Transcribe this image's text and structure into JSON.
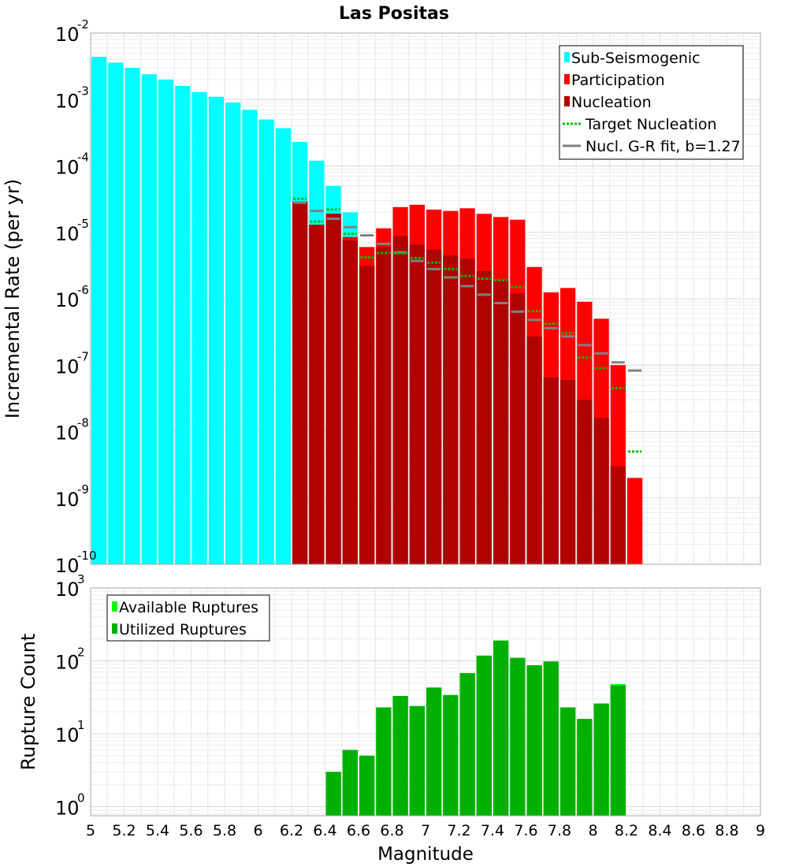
{
  "chart_data": [
    {
      "type": "bar",
      "title": "Las Positas",
      "xlabel": "",
      "ylabel": "Incremental Rate (per yr)",
      "yscale": "log",
      "ylim": [
        1e-10,
        0.01
      ],
      "xlim": [
        5,
        9
      ],
      "grid": true,
      "legend_position": "top-right",
      "y_tick_labels": [
        {
          "base": "10",
          "exp": "-2"
        },
        {
          "base": "10",
          "exp": "-3"
        },
        {
          "base": "10",
          "exp": "-4"
        },
        {
          "base": "10",
          "exp": "-5"
        },
        {
          "base": "10",
          "exp": "-6"
        },
        {
          "base": "10",
          "exp": "-7"
        },
        {
          "base": "10",
          "exp": "-8"
        },
        {
          "base": "10",
          "exp": "-9"
        },
        {
          "base": "10",
          "exp": "-10"
        }
      ],
      "legend": [
        {
          "label": "Sub-Seismogenic",
          "color": "#00ffff",
          "kind": "box"
        },
        {
          "label": "Participation",
          "color": "#ff0000",
          "kind": "box"
        },
        {
          "label": "Nucleation",
          "color": "#b00000",
          "kind": "box"
        },
        {
          "label": "Target Nucleation",
          "color": "#00bb00",
          "kind": "dotted"
        },
        {
          "label": "Nucl. G-R fit, b=1.27",
          "color": "#808080",
          "kind": "line"
        }
      ],
      "series": [
        {
          "name": "Sub-Seismogenic",
          "color": "#00ffff",
          "x": [
            5.05,
            5.15,
            5.25,
            5.35,
            5.45,
            5.55,
            5.65,
            5.75,
            5.85,
            5.95,
            6.05,
            6.15,
            6.25,
            6.35,
            6.45,
            6.55
          ],
          "values": [
            0.0044,
            0.0036,
            0.003,
            0.0024,
            0.002,
            0.0016,
            0.0013,
            0.0011,
            0.0009,
            0.0007,
            0.0005,
            0.00037,
            0.00023,
            0.00012,
            5e-05,
            2e-05
          ]
        },
        {
          "name": "Participation",
          "color": "#ff0000",
          "x": [
            6.25,
            6.35,
            6.45,
            6.55,
            6.65,
            6.75,
            6.85,
            6.95,
            7.05,
            7.15,
            7.25,
            7.35,
            7.45,
            7.55,
            7.65,
            7.75,
            7.85,
            7.95,
            8.05,
            8.15,
            8.25
          ],
          "values": [
            2.9e-05,
            1.3e-05,
            1.9e-05,
            8.5e-06,
            6e-06,
            1.15e-05,
            2.4e-05,
            2.6e-05,
            2.2e-05,
            2.1e-05,
            2.3e-05,
            1.9e-05,
            1.7e-05,
            1.55e-05,
            3e-06,
            1.25e-06,
            1.45e-06,
            9e-07,
            5e-07,
            1e-07,
            2e-09
          ]
        },
        {
          "name": "Nucleation",
          "color": "#b00000",
          "x": [
            6.25,
            6.35,
            6.45,
            6.55,
            6.65,
            6.75,
            6.85,
            6.95,
            7.05,
            7.15,
            7.25,
            7.35,
            7.45,
            7.55,
            7.65,
            7.75,
            7.85,
            7.95,
            8.05,
            8.15
          ],
          "values": [
            2.9e-05,
            1.3e-05,
            1.9e-05,
            7.5e-06,
            3.1e-06,
            6e-06,
            8.8e-06,
            6.5e-06,
            5.5e-06,
            4.5e-06,
            4e-06,
            2.6e-06,
            1.9e-06,
            1.2e-06,
            2.7e-07,
            6.5e-08,
            6e-08,
            3e-08,
            1.6e-08,
            3e-09
          ]
        },
        {
          "name": "Target Nucleation",
          "color": "#00bb00",
          "x": [
            6.25,
            6.35,
            6.45,
            6.55,
            6.65,
            6.75,
            6.85,
            6.95,
            7.05,
            7.15,
            7.25,
            7.35,
            7.45,
            7.55,
            7.65,
            7.75,
            7.85,
            7.95,
            8.05,
            8.15,
            8.25
          ],
          "values": [
            3.2e-05,
            1.45e-05,
            2.2e-05,
            9.5e-06,
            4.2e-06,
            4.9e-06,
            4.8e-06,
            4.1e-06,
            3.5e-06,
            2.8e-06,
            2.2e-06,
            2e-06,
            1.9e-06,
            1.5e-06,
            6.5e-07,
            4.2e-07,
            3e-07,
            1.3e-07,
            9e-08,
            4.5e-08,
            5e-09
          ]
        },
        {
          "name": "Nucl. G-R fit, b=1.27",
          "color": "#808080",
          "x": [
            6.25,
            6.35,
            6.45,
            6.55,
            6.65,
            6.75,
            6.85,
            6.95,
            7.05,
            7.15,
            7.25,
            7.35,
            7.45,
            7.55,
            7.65,
            7.75,
            7.85,
            7.95,
            8.05,
            8.15,
            8.25
          ],
          "values": [
            2.8e-05,
            2.1e-05,
            1.6e-05,
            1.2e-05,
            9e-06,
            6.7e-06,
            5e-06,
            3.7e-06,
            2.8e-06,
            2.1e-06,
            1.55e-06,
            1.15e-06,
            8.6e-07,
            6.4e-07,
            4.8e-07,
            3.6e-07,
            2.7e-07,
            2e-07,
            1.5e-07,
            1.1e-07,
            8.3e-08
          ]
        }
      ]
    },
    {
      "type": "bar",
      "title": "",
      "xlabel": "Magnitude",
      "ylabel": "Rupture Count",
      "yscale": "log",
      "ylim": [
        0.75,
        1000
      ],
      "xlim": [
        5,
        9
      ],
      "grid": true,
      "legend_position": "top-left",
      "x_tick_labels": [
        "5",
        "5.2",
        "5.4",
        "5.6",
        "5.8",
        "6",
        "6.2",
        "6.4",
        "6.6",
        "6.8",
        "7",
        "7.2",
        "7.4",
        "7.6",
        "7.8",
        "8",
        "8.2",
        "8.4",
        "8.6",
        "8.8",
        "9"
      ],
      "y_tick_labels": [
        {
          "base": "10",
          "exp": "3"
        },
        {
          "base": "10",
          "exp": "2"
        },
        {
          "base": "10",
          "exp": "1"
        },
        {
          "base": "10",
          "exp": "0"
        }
      ],
      "legend": [
        {
          "label": "Available Ruptures",
          "color": "#00ff00",
          "kind": "box"
        },
        {
          "label": "Utilized Ruptures",
          "color": "#00b000",
          "kind": "box"
        }
      ],
      "series": [
        {
          "name": "Available Ruptures",
          "color": "#00ff00",
          "x": [
            6.45,
            6.55,
            6.65,
            6.75,
            6.85,
            6.95,
            7.05,
            7.15,
            7.25,
            7.35,
            7.45,
            7.55,
            7.65,
            7.75,
            7.85,
            7.95,
            8.05,
            8.15
          ],
          "values": [
            3,
            6,
            5,
            23,
            33,
            24,
            43,
            34,
            68,
            118,
            190,
            110,
            87,
            98,
            23,
            16,
            26,
            48
          ]
        },
        {
          "name": "Utilized Ruptures",
          "color": "#00b000",
          "x": [
            6.45,
            6.55,
            6.65,
            6.75,
            6.85,
            6.95,
            7.05,
            7.15,
            7.25,
            7.35,
            7.45,
            7.55,
            7.65,
            7.75,
            7.85,
            7.95,
            8.05,
            8.15
          ],
          "values": [
            3,
            6,
            5,
            23,
            33,
            24,
            43,
            34,
            68,
            118,
            190,
            110,
            87,
            98,
            23,
            16,
            26,
            46
          ]
        }
      ]
    }
  ]
}
